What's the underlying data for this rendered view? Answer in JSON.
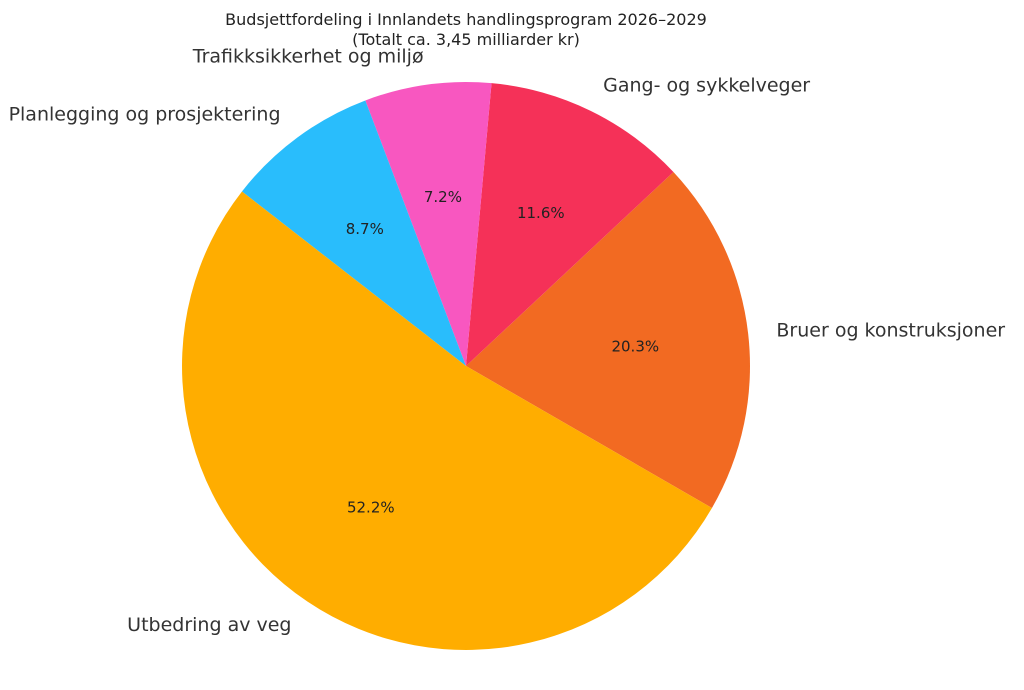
{
  "chart_data": {
    "type": "pie",
    "title": "Budsjettfordeling i Innlandets handlingsprogram 2026–2029",
    "subtitle": "(Totalt ca. 3,45 milliarder kr)",
    "slices": [
      {
        "label": "Bruer og konstruksjoner",
        "value": 20.3,
        "pct_label": "20.3%",
        "color": "#f26a22"
      },
      {
        "label": "Gang- og sykkelveger",
        "value": 11.6,
        "pct_label": "11.6%",
        "color": "#f53158"
      },
      {
        "label": "Trafikksikkerhet og miljø",
        "value": 7.2,
        "pct_label": "7.2%",
        "color": "#f857c0"
      },
      {
        "label": "Planlegging og prosjektering",
        "value": 8.7,
        "pct_label": "8.7%",
        "color": "#29bdfc"
      },
      {
        "label": "Utbedring av veg",
        "value": 52.2,
        "pct_label": "52.2%",
        "color": "#ffad00"
      }
    ]
  }
}
